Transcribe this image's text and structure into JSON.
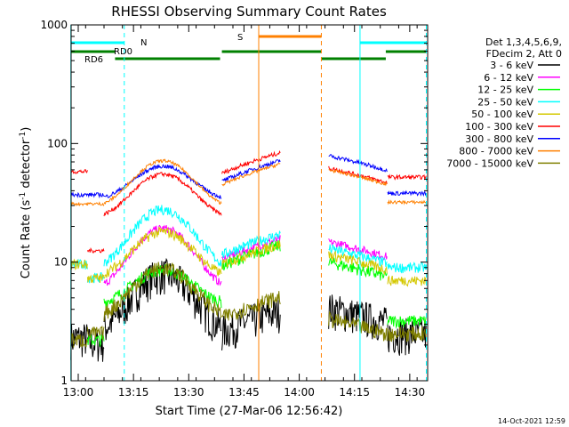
{
  "chart_data": {
    "type": "line",
    "title": "RHESSI Observing Summary Count Rates",
    "xlabel": "Start Time (27-Mar-06 12:56:42)",
    "ylabel_main": "Count Rate (s",
    "ylabel_sup": "-1",
    "ylabel_mid": " detector",
    "ylabel_end": ")",
    "yscale": "log",
    "ylim": [
      1,
      1000
    ],
    "xlim_minutes": [
      -4,
      36
    ],
    "xticks": [
      {
        "label": "13:00",
        "t": 0
      },
      {
        "label": "13:15",
        "t": 15
      },
      {
        "label": "13:30",
        "t": 30
      },
      {
        "label": "13:45",
        "t": 45
      },
      {
        "label": "14:00",
        "t": 60
      },
      {
        "label": "14:15",
        "t": 75
      },
      {
        "label": "14:30",
        "t": 90
      }
    ],
    "yticks": [
      {
        "label": "1",
        "v": 1
      },
      {
        "label": "10",
        "v": 10
      },
      {
        "label": "100",
        "v": 100
      },
      {
        "label": "1000",
        "v": 1000
      }
    ],
    "legend_header": [
      "Det 1,3,4,5,6,9,",
      "FDecim 2, Att 0"
    ],
    "legend_position": "right",
    "series": [
      {
        "name": "3 - 6 keV",
        "color": "#000000"
      },
      {
        "name": "6 - 12 keV",
        "color": "#ff00ff"
      },
      {
        "name": "12 - 25 keV",
        "color": "#00ff00"
      },
      {
        "name": "25 - 50 keV",
        "color": "#00ffff"
      },
      {
        "name": "50 - 100 keV",
        "color": "#d4c800"
      },
      {
        "name": "100 - 300 keV",
        "color": "#ff0000"
      },
      {
        "name": "300 - 800 keV",
        "color": "#0000ff"
      },
      {
        "name": "800 - 7000 keV",
        "color": "#ff8000"
      },
      {
        "name": "7000 - 15000 keV",
        "color": "#808000"
      }
    ],
    "flags": [
      {
        "label": "N",
        "color": "#00ffff"
      },
      {
        "label": "RD0",
        "color": "#008000"
      },
      {
        "label": "RD6",
        "color": "#008000"
      },
      {
        "label": "S",
        "color": "#ff8000"
      }
    ],
    "timestamp": "14-Oct-2021 12:59"
  }
}
